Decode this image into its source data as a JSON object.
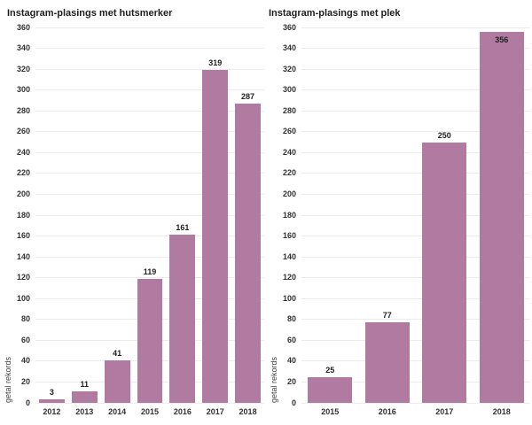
{
  "colors": {
    "bar": "#b07aa1",
    "grid": "#ececec",
    "text": "#333333",
    "title": "#1f1f1f",
    "background": "#ffffff"
  },
  "chart_data": [
    {
      "type": "bar",
      "title": "Instagram-plasings met hutsmerker",
      "xlabel": "",
      "ylabel": "getal rekords",
      "categories": [
        "2012",
        "2013",
        "2014",
        "2015",
        "2016",
        "2017",
        "2018"
      ],
      "values": [
        3,
        11,
        41,
        119,
        161,
        319,
        287
      ],
      "ylim": [
        0,
        360
      ],
      "ytick_step": 20,
      "grid": true,
      "legend": false,
      "bar_color": "#b07aa1",
      "value_labels": true
    },
    {
      "type": "bar",
      "title": "Instagram-plasings met plek",
      "xlabel": "",
      "ylabel": "getal rekords",
      "categories": [
        "2015",
        "2016",
        "2017",
        "2018"
      ],
      "values": [
        25,
        77,
        250,
        356
      ],
      "ylim": [
        0,
        360
      ],
      "ytick_step": 20,
      "grid": true,
      "legend": false,
      "bar_color": "#b07aa1",
      "value_labels": true
    }
  ]
}
